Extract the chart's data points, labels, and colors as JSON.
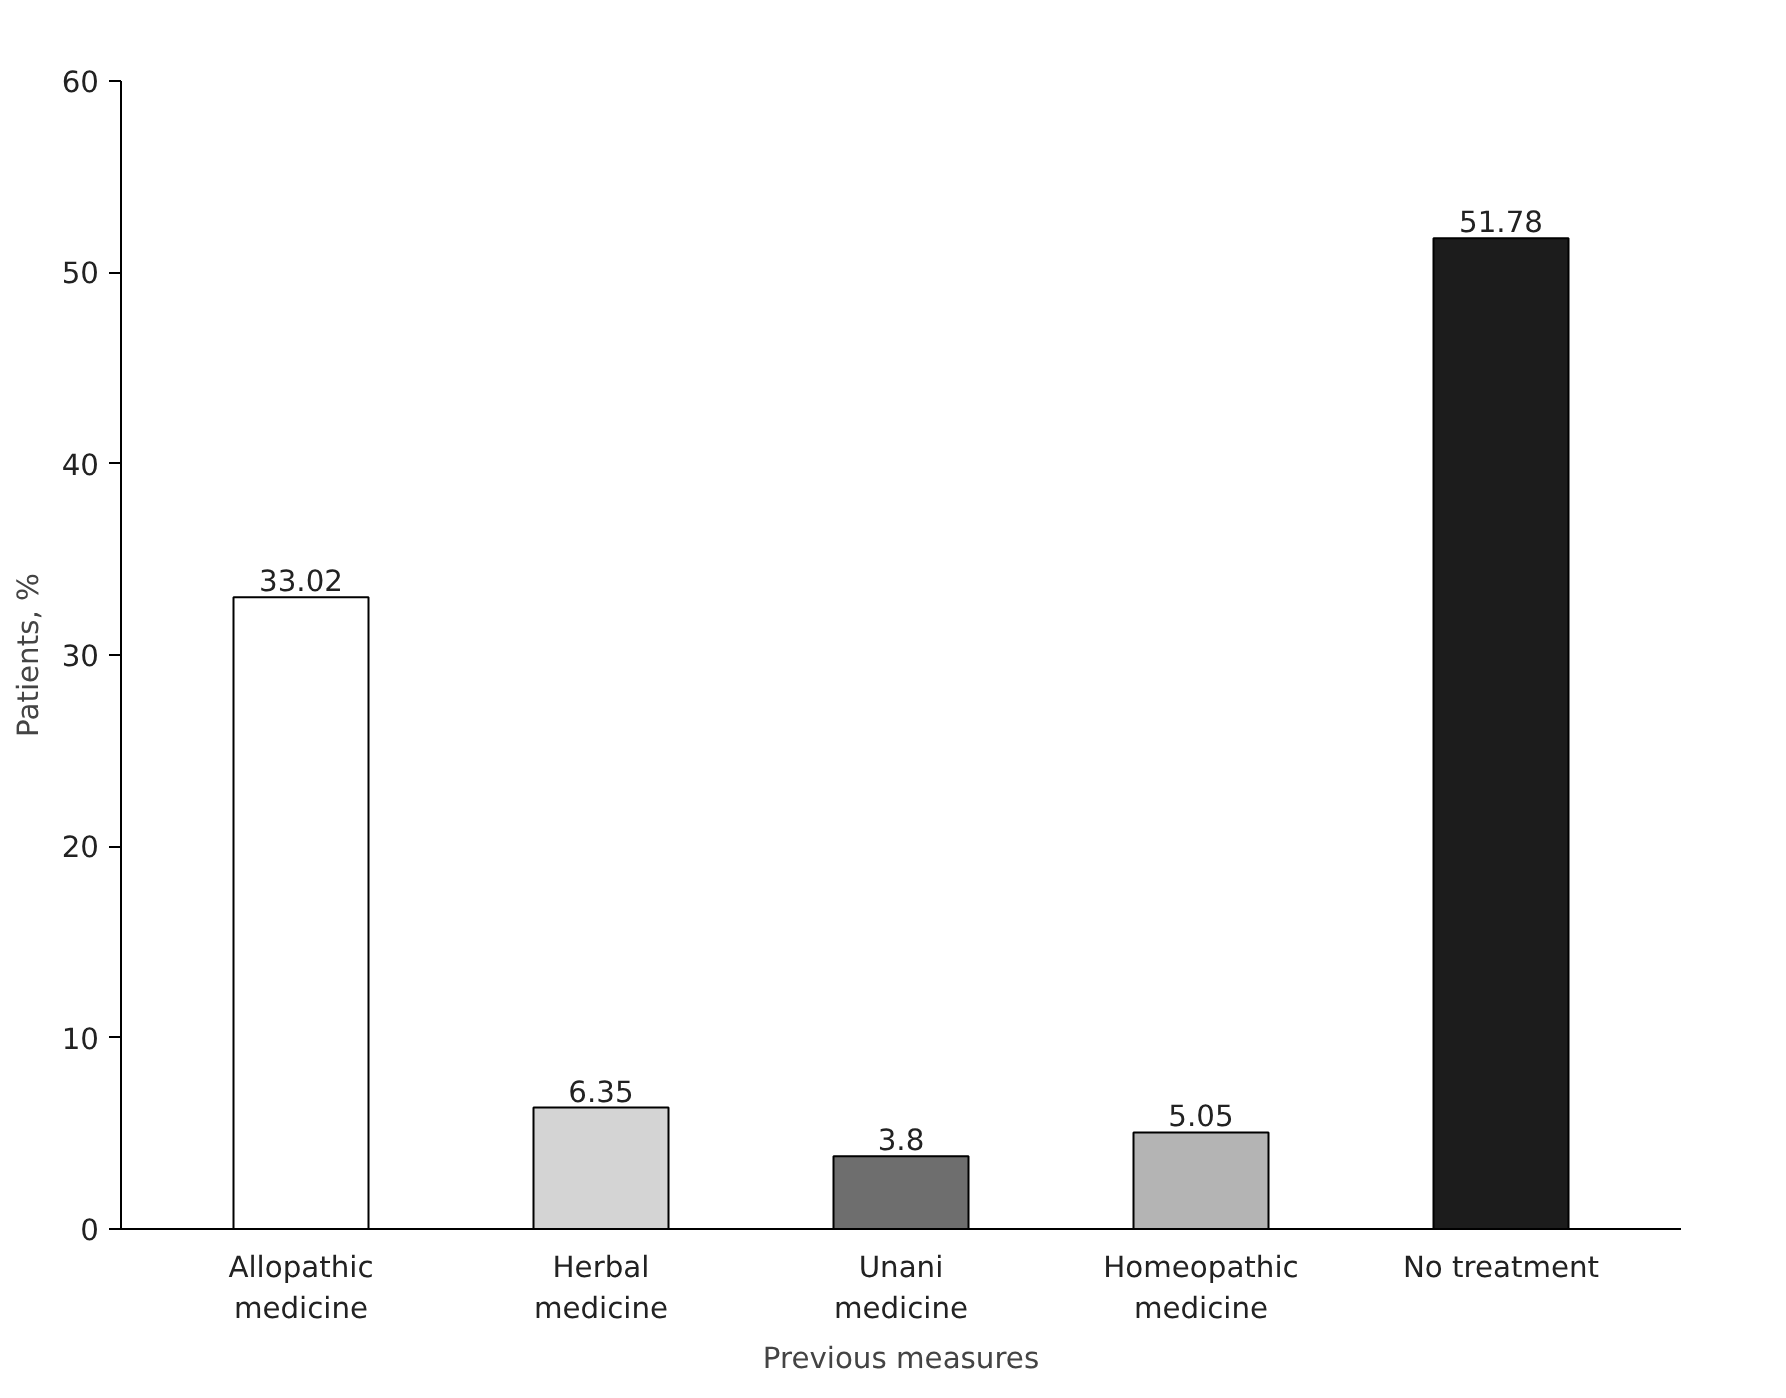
{
  "chart_data": {
    "type": "bar",
    "xlabel": "Previous measures",
    "ylabel": "Patients, %",
    "categories": [
      "Allopathic medicine",
      "Herbal medicine",
      "Unani medicine",
      "Homeopathic medicine",
      "No treatment"
    ],
    "values": [
      33.02,
      6.35,
      3.8,
      5.05,
      51.78
    ],
    "colors": [
      "#ffffff",
      "#d4d4d4",
      "#6e6e6e",
      "#b4b4b4",
      "#1c1c1c"
    ],
    "ylim": [
      0,
      60
    ],
    "yticks": [
      0,
      10,
      20,
      30,
      40,
      50,
      60
    ],
    "data_labels": true,
    "grid": false
  }
}
